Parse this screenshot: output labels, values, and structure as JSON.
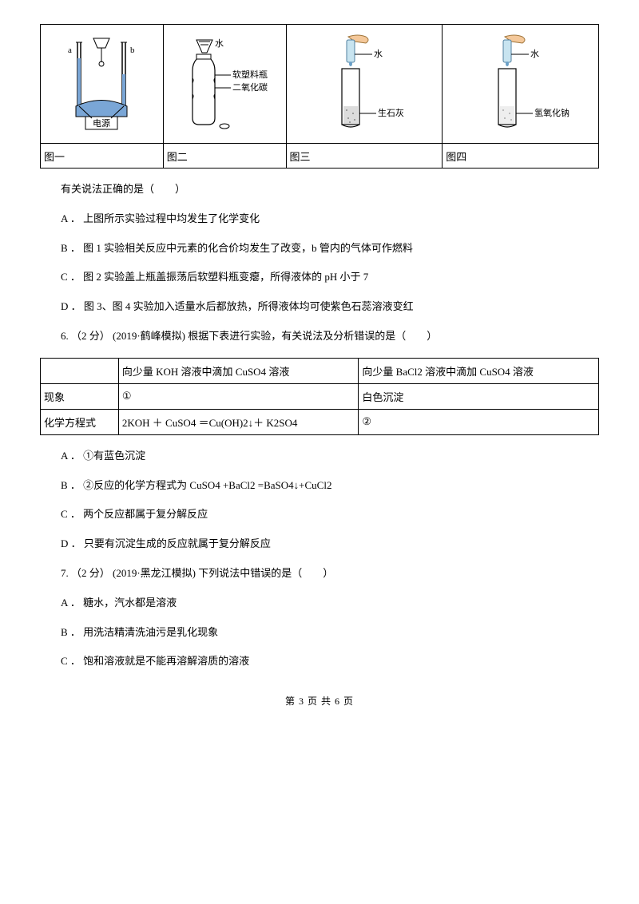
{
  "figures": {
    "cellWidths": [
      "22%",
      "22%",
      "28%",
      "28%"
    ],
    "labels": [
      "图一",
      "图二",
      "图三",
      "图四"
    ],
    "fig1": {
      "a": "a",
      "b": "b",
      "box": "电源"
    },
    "fig2": {
      "water": "水",
      "bottle1": "软塑料瓶",
      "bottle2": "二氧化碳"
    },
    "fig3": {
      "water": "水",
      "content": "生石灰"
    },
    "fig4": {
      "water": "水",
      "content": "氢氧化钠"
    }
  },
  "q5": {
    "stem": "有关说法正确的是（　　）",
    "A": "A ． 上图所示实验过程中均发生了化学变化",
    "B": "B ． 图 1 实验相关反应中元素的化合价均发生了改变，b 管内的气体可作燃料",
    "C": "C ． 图 2 实验盖上瓶盖振荡后软塑料瓶变瘪，所得液体的 pH 小于 7",
    "D": "D ． 图 3、图 4 实验加入适量水后都放热，所得液体均可使紫色石蕊溶液变红"
  },
  "q6": {
    "stem": "6. （2 分） (2019·鹤峰模拟)  根据下表进行实验，有关说法及分析错误的是（　　）",
    "table": {
      "colWidths": [
        "14%",
        "43%",
        "43%"
      ],
      "h1": "",
      "h2": "向少量 KOH 溶液中滴加 CuSO4 溶液",
      "h3": "向少量 BaCl2 溶液中滴加 CuSO4 溶液",
      "r1c1": "现象",
      "r1c2": "①",
      "r1c3": "白色沉淀",
      "r2c1": "化学方程式",
      "r2c2": "2KOH ＋ CuSO4 ＝Cu(OH)2↓＋ K2SO4",
      "r2c3": "②"
    },
    "A": "A ． ①有蓝色沉淀",
    "B": "B ． ②反应的化学方程式为 CuSO4 +BaCl2 =BaSO4↓+CuCl2",
    "C": "C ． 两个反应都属于复分解反应",
    "D": "D ． 只要有沉淀生成的反应就属于复分解反应"
  },
  "q7": {
    "stem": "7. （2 分） (2019·黑龙江模拟)  下列说法中错误的是（　　）",
    "A": "A ． 糖水，汽水都是溶液",
    "B": "B ． 用洗洁精清洗油污是乳化现象",
    "C": "C ． 饱和溶液就是不能再溶解溶质的溶液"
  },
  "footer": "第 3 页 共 6 页"
}
